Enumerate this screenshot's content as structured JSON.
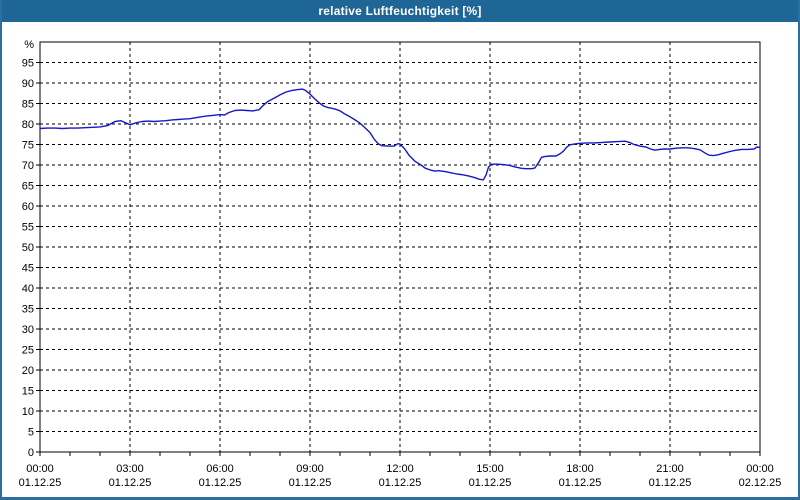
{
  "window": {
    "title": "relative Luftfeuchtigkeit [%]"
  },
  "colors": {
    "title_bar": "#1d6695",
    "window_border": "#2b6f9e",
    "background": "#ffffff",
    "grid": "#000000",
    "axis": "#000000",
    "line": "#1717c8"
  },
  "chart_data": {
    "type": "line",
    "title": "relative Luftfeuchtigkeit [%]",
    "grid": "dashed",
    "legend": "none",
    "y_axis": {
      "unit_label": "%",
      "min": 0,
      "max": 100,
      "tick_step": 5,
      "ticks": [
        {
          "value": 0,
          "label": "0"
        },
        {
          "value": 5,
          "label": "5"
        },
        {
          "value": 10,
          "label": "10"
        },
        {
          "value": 15,
          "label": "15"
        },
        {
          "value": 20,
          "label": "20"
        },
        {
          "value": 25,
          "label": "25"
        },
        {
          "value": 30,
          "label": "30"
        },
        {
          "value": 35,
          "label": "35"
        },
        {
          "value": 40,
          "label": "40"
        },
        {
          "value": 45,
          "label": "45"
        },
        {
          "value": 50,
          "label": "50"
        },
        {
          "value": 55,
          "label": "55"
        },
        {
          "value": 60,
          "label": "60"
        },
        {
          "value": 65,
          "label": "65"
        },
        {
          "value": 70,
          "label": "70"
        },
        {
          "value": 75,
          "label": "75"
        },
        {
          "value": 80,
          "label": "80"
        },
        {
          "value": 85,
          "label": "85"
        },
        {
          "value": 90,
          "label": "90"
        },
        {
          "value": 95,
          "label": "95"
        }
      ]
    },
    "x_axis": {
      "span_hours": 24,
      "minor_tick_every_hours": 1,
      "ticks": [
        {
          "hour": 0,
          "time": "00:00",
          "date": "01.12.25"
        },
        {
          "hour": 3,
          "time": "03:00",
          "date": "01.12.25"
        },
        {
          "hour": 6,
          "time": "06:00",
          "date": "01.12.25"
        },
        {
          "hour": 9,
          "time": "09:00",
          "date": "01.12.25"
        },
        {
          "hour": 12,
          "time": "12:00",
          "date": "01.12.25"
        },
        {
          "hour": 15,
          "time": "15:00",
          "date": "01.12.25"
        },
        {
          "hour": 18,
          "time": "18:00",
          "date": "01.12.25"
        },
        {
          "hour": 21,
          "time": "21:00",
          "date": "01.12.25"
        },
        {
          "hour": 24,
          "time": "00:00",
          "date": "02.12.25"
        }
      ]
    },
    "series": [
      {
        "name": "relative Luftfeuchtigkeit",
        "unit": "%",
        "color": "#1717c8",
        "points": [
          [
            0,
            78.9
          ],
          [
            0.25,
            79.0
          ],
          [
            0.5,
            79.0
          ],
          [
            0.75,
            78.9
          ],
          [
            1,
            79.0
          ],
          [
            1.25,
            79.0
          ],
          [
            1.5,
            79.1
          ],
          [
            1.75,
            79.2
          ],
          [
            2,
            79.3
          ],
          [
            2.25,
            79.6
          ],
          [
            2.5,
            80.6
          ],
          [
            2.7,
            80.8
          ],
          [
            3,
            79.8
          ],
          [
            3.2,
            80.3
          ],
          [
            3.4,
            80.6
          ],
          [
            3.6,
            80.7
          ],
          [
            3.8,
            80.6
          ],
          [
            4,
            80.7
          ],
          [
            4.2,
            80.8
          ],
          [
            4.4,
            81.0
          ],
          [
            4.6,
            81.1
          ],
          [
            4.8,
            81.2
          ],
          [
            5,
            81.3
          ],
          [
            5.25,
            81.6
          ],
          [
            5.5,
            81.9
          ],
          [
            5.75,
            82.1
          ],
          [
            6,
            82.3
          ],
          [
            6.15,
            82.2
          ],
          [
            6.3,
            82.8
          ],
          [
            6.5,
            83.3
          ],
          [
            6.7,
            83.4
          ],
          [
            6.9,
            83.3
          ],
          [
            7.1,
            83.2
          ],
          [
            7.3,
            83.5
          ],
          [
            7.45,
            84.6
          ],
          [
            7.6,
            85.5
          ],
          [
            7.8,
            86.3
          ],
          [
            8,
            87.1
          ],
          [
            8.2,
            87.8
          ],
          [
            8.4,
            88.2
          ],
          [
            8.6,
            88.4
          ],
          [
            8.75,
            88.5
          ],
          [
            8.85,
            88.2
          ],
          [
            9,
            87.3
          ],
          [
            9.15,
            86.2
          ],
          [
            9.3,
            85.2
          ],
          [
            9.45,
            84.4
          ],
          [
            9.6,
            84.0
          ],
          [
            9.75,
            83.8
          ],
          [
            9.9,
            83.5
          ],
          [
            10,
            83.2
          ],
          [
            10.15,
            82.5
          ],
          [
            10.3,
            81.9
          ],
          [
            10.5,
            81.0
          ],
          [
            10.65,
            80.3
          ],
          [
            10.8,
            79.3
          ],
          [
            11,
            77.9
          ],
          [
            11.15,
            76.2
          ],
          [
            11.27,
            75.2
          ],
          [
            11.4,
            74.7
          ],
          [
            11.6,
            74.6
          ],
          [
            11.8,
            74.6
          ],
          [
            11.93,
            75.2
          ],
          [
            12,
            75.1
          ],
          [
            12.15,
            74.0
          ],
          [
            12.3,
            72.4
          ],
          [
            12.5,
            70.9
          ],
          [
            12.7,
            70.0
          ],
          [
            12.85,
            69.2
          ],
          [
            13,
            68.8
          ],
          [
            13.15,
            68.5
          ],
          [
            13.3,
            68.6
          ],
          [
            13.5,
            68.4
          ],
          [
            13.7,
            68.1
          ],
          [
            13.9,
            67.8
          ],
          [
            14.1,
            67.6
          ],
          [
            14.3,
            67.3
          ],
          [
            14.5,
            66.9
          ],
          [
            14.65,
            66.5
          ],
          [
            14.78,
            66.4
          ],
          [
            14.87,
            67.6
          ],
          [
            14.95,
            69.5
          ],
          [
            15.05,
            70.2
          ],
          [
            15.25,
            70.2
          ],
          [
            15.45,
            70.1
          ],
          [
            15.65,
            69.9
          ],
          [
            15.85,
            69.5
          ],
          [
            16.05,
            69.2
          ],
          [
            16.2,
            69.1
          ],
          [
            16.4,
            69.1
          ],
          [
            16.5,
            69.3
          ],
          [
            16.62,
            70.6
          ],
          [
            16.72,
            71.9
          ],
          [
            16.85,
            72.1
          ],
          [
            17,
            72.2
          ],
          [
            17.2,
            72.2
          ],
          [
            17.35,
            72.8
          ],
          [
            17.45,
            73.4
          ],
          [
            17.55,
            74.3
          ],
          [
            17.65,
            74.9
          ],
          [
            17.8,
            75.1
          ],
          [
            18,
            75.3
          ],
          [
            18.25,
            75.4
          ],
          [
            18.5,
            75.4
          ],
          [
            18.75,
            75.5
          ],
          [
            19,
            75.6
          ],
          [
            19.25,
            75.7
          ],
          [
            19.5,
            75.8
          ],
          [
            19.65,
            75.5
          ],
          [
            19.8,
            75.0
          ],
          [
            20,
            74.6
          ],
          [
            20.2,
            74.4
          ],
          [
            20.35,
            73.9
          ],
          [
            20.5,
            73.6
          ],
          [
            20.65,
            73.8
          ],
          [
            20.8,
            73.9
          ],
          [
            21,
            73.9
          ],
          [
            21.2,
            74.1
          ],
          [
            21.4,
            74.2
          ],
          [
            21.6,
            74.2
          ],
          [
            21.8,
            74.0
          ],
          [
            22,
            73.7
          ],
          [
            22.15,
            73.0
          ],
          [
            22.3,
            72.4
          ],
          [
            22.45,
            72.3
          ],
          [
            22.6,
            72.5
          ],
          [
            22.8,
            72.9
          ],
          [
            23,
            73.3
          ],
          [
            23.2,
            73.6
          ],
          [
            23.4,
            73.8
          ],
          [
            23.6,
            73.8
          ],
          [
            23.8,
            73.9
          ],
          [
            23.9,
            74.4
          ],
          [
            24,
            74.3
          ]
        ]
      }
    ]
  }
}
